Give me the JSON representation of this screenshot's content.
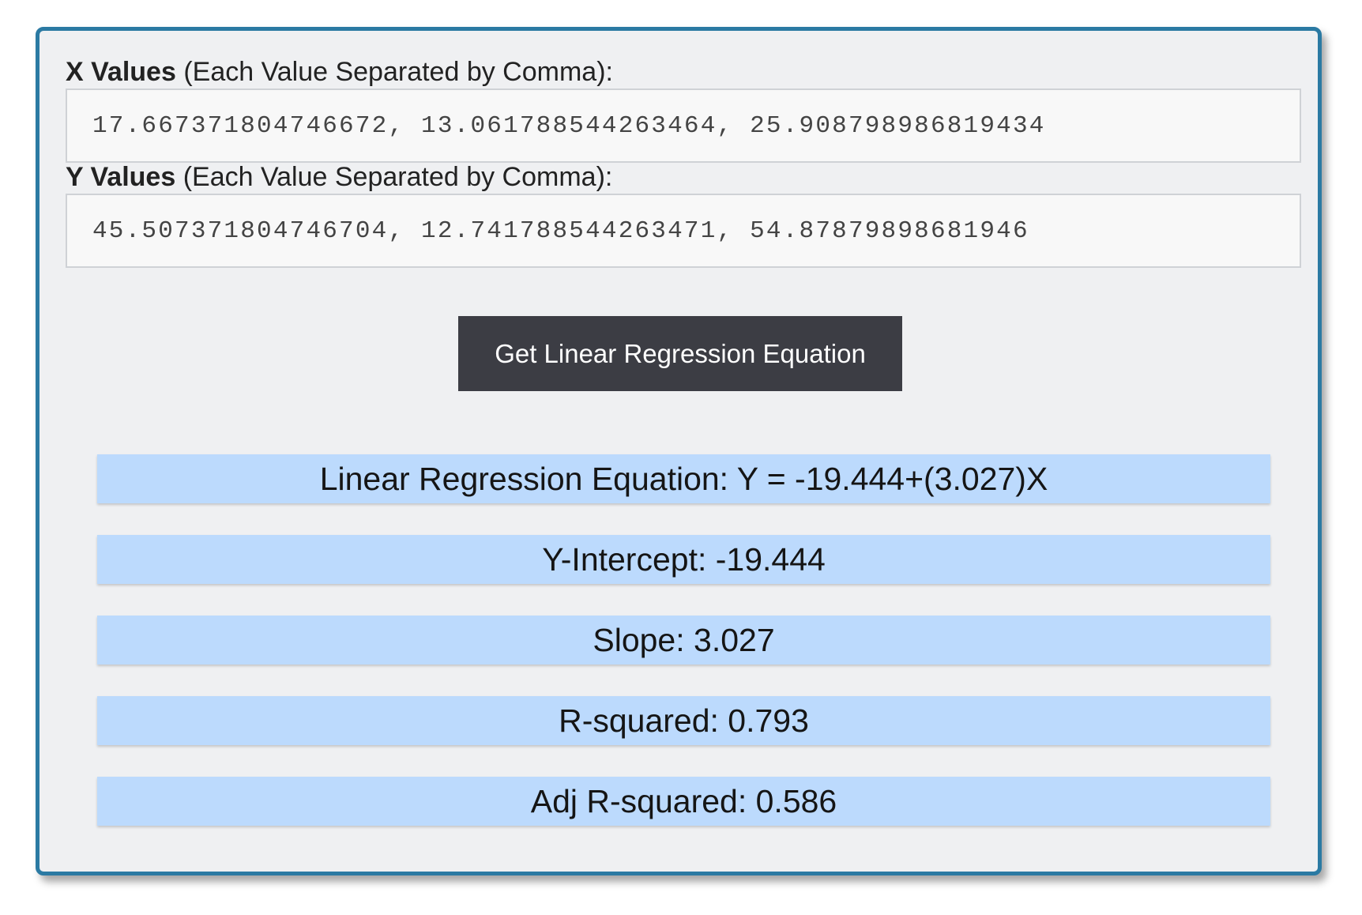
{
  "x_field": {
    "label_bold": "X Values",
    "label_rest": " (Each Value Separated by Comma):",
    "value": "17.667371804746672, 13.061788544263464, 25.908798986819434"
  },
  "y_field": {
    "label_bold": "Y Values",
    "label_rest": " (Each Value Separated by Comma):",
    "value": "45.507371804746704, 12.741788544263471, 54.87879898681946"
  },
  "button": {
    "label": "Get Linear Regression Equation"
  },
  "results": {
    "equation": "Linear Regression Equation: Y = -19.444+(3.027)X",
    "intercept": "Y-Intercept: -19.444",
    "slope": "Slope: 3.027",
    "r_squared": "R-squared: 0.793",
    "adj_r_squared": "Adj R-squared: 0.586"
  },
  "colors": {
    "panel_border": "#2b7aa3",
    "panel_background": "#eff0f2",
    "button_background": "#3c3d44",
    "result_background": "#bcdafd"
  }
}
